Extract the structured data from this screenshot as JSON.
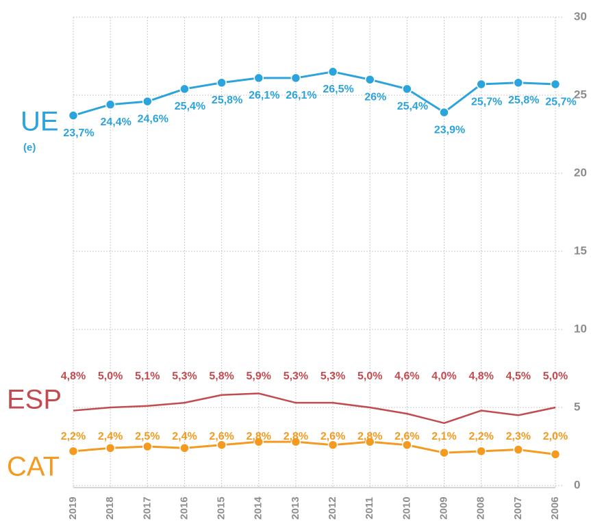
{
  "chart_data": {
    "type": "line",
    "categories": [
      "2019",
      "2018",
      "2017",
      "2016",
      "2015",
      "2014",
      "2013",
      "2012",
      "2011",
      "2010",
      "2009",
      "2008",
      "2007",
      "2006"
    ],
    "ylim": [
      0,
      30
    ],
    "yticks": [
      0,
      5,
      10,
      15,
      20,
      25,
      30
    ],
    "grid": true,
    "annotation": "(e)",
    "series": [
      {
        "name": "UE",
        "color": "#2ba3dc",
        "marker": true,
        "values": [
          23.7,
          24.4,
          24.6,
          25.4,
          25.8,
          26.1,
          26.1,
          26.5,
          26,
          25.4,
          23.9,
          25.7,
          25.8,
          25.7
        ],
        "value_labels": [
          "23,7%",
          "24,4%",
          "24,6%",
          "25,4%",
          "25,8%",
          "26,1%",
          "26,1%",
          "26,5%",
          "26%",
          "25,4%",
          "23,9%",
          "25,7%",
          "25,8%",
          "25,7%"
        ]
      },
      {
        "name": "ESP",
        "color": "#c24b50",
        "marker": false,
        "values": [
          4.8,
          5.0,
          5.1,
          5.3,
          5.8,
          5.9,
          5.3,
          5.3,
          5.0,
          4.6,
          4.0,
          4.8,
          4.5,
          5.0
        ],
        "value_labels": [
          "4,8%",
          "5,0%",
          "5,1%",
          "5,3%",
          "5,8%",
          "5,9%",
          "5,3%",
          "5,3%",
          "5,0%",
          "4,6%",
          "4,0%",
          "4,8%",
          "4,5%",
          "5,0%"
        ]
      },
      {
        "name": "CAT",
        "color": "#f39a1f",
        "marker": true,
        "values": [
          2.2,
          2.4,
          2.5,
          2.4,
          2.6,
          2.8,
          2.8,
          2.6,
          2.8,
          2.6,
          2.1,
          2.2,
          2.3,
          2.0
        ],
        "value_labels": [
          "2,2%",
          "2,4%",
          "2,5%",
          "2,4%",
          "2,6%",
          "2,8%",
          "2,8%",
          "2,6%",
          "2,8%",
          "2,6%",
          "2,1%",
          "2,2%",
          "2,3%",
          "2,0%"
        ]
      }
    ]
  }
}
